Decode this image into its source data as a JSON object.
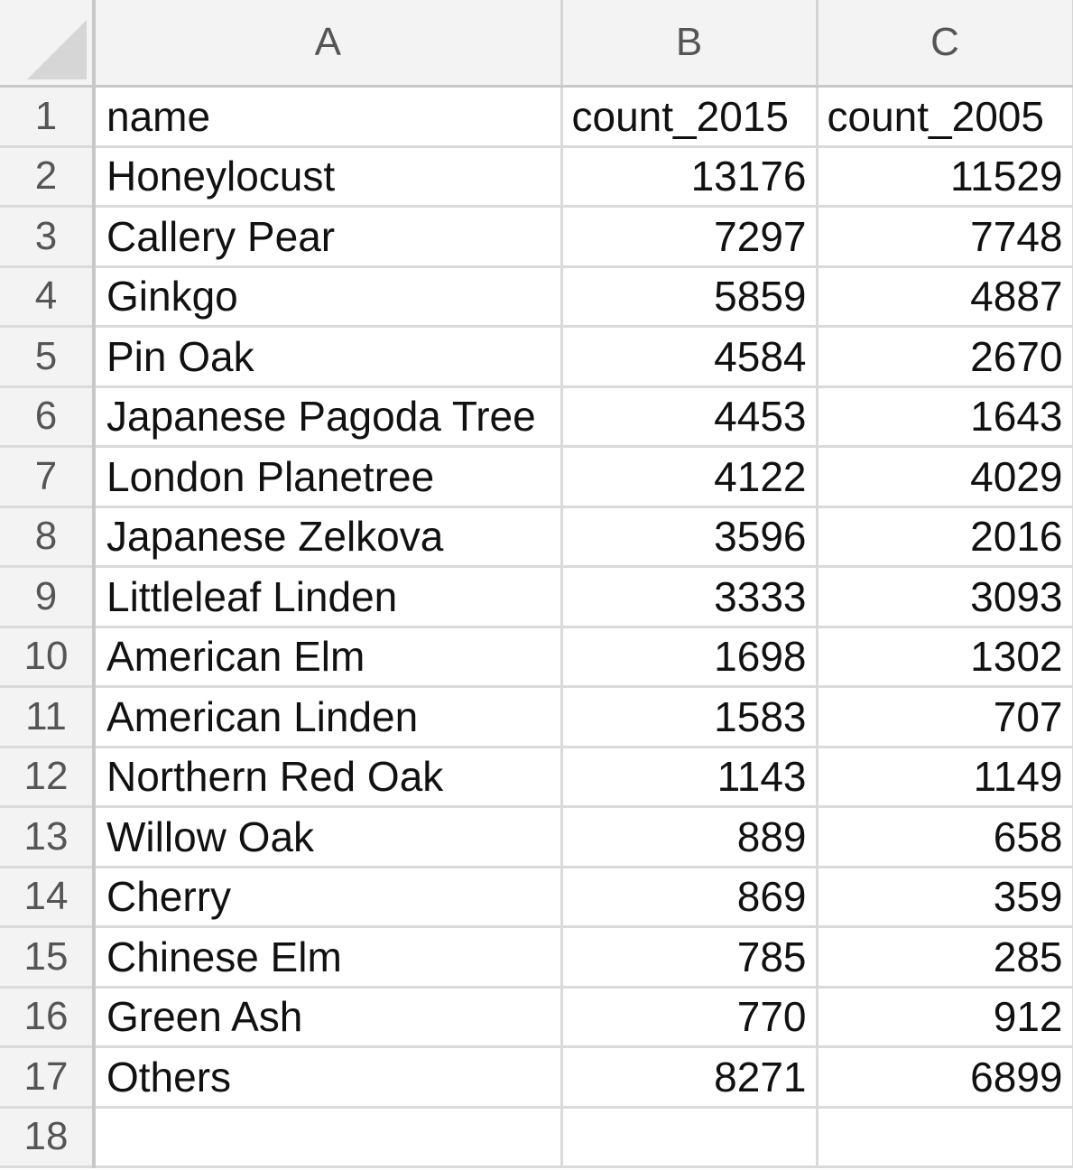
{
  "columns": [
    "A",
    "B",
    "C"
  ],
  "row_numbers": [
    "1",
    "2",
    "3",
    "4",
    "5",
    "6",
    "7",
    "8",
    "9",
    "10",
    "11",
    "12",
    "13",
    "14",
    "15",
    "16",
    "17",
    "18"
  ],
  "header_cells": {
    "a": "name",
    "b": "count_2015",
    "c": "count_2005"
  },
  "rows": [
    {
      "name": "Honeylocust",
      "count_2015": "13176",
      "count_2005": "11529"
    },
    {
      "name": "Callery Pear",
      "count_2015": "7297",
      "count_2005": "7748"
    },
    {
      "name": "Ginkgo",
      "count_2015": "5859",
      "count_2005": "4887"
    },
    {
      "name": "Pin Oak",
      "count_2015": "4584",
      "count_2005": "2670"
    },
    {
      "name": "Japanese Pagoda Tree",
      "count_2015": "4453",
      "count_2005": "1643"
    },
    {
      "name": "London Planetree",
      "count_2015": "4122",
      "count_2005": "4029"
    },
    {
      "name": "Japanese Zelkova",
      "count_2015": "3596",
      "count_2005": "2016"
    },
    {
      "name": "Littleleaf Linden",
      "count_2015": "3333",
      "count_2005": "3093"
    },
    {
      "name": "American Elm",
      "count_2015": "1698",
      "count_2005": "1302"
    },
    {
      "name": "American Linden",
      "count_2015": "1583",
      "count_2005": "707"
    },
    {
      "name": "Northern Red Oak",
      "count_2015": "1143",
      "count_2005": "1149"
    },
    {
      "name": "Willow Oak",
      "count_2015": "889",
      "count_2005": "658"
    },
    {
      "name": "Cherry",
      "count_2015": "869",
      "count_2005": "359"
    },
    {
      "name": "Chinese Elm",
      "count_2015": "785",
      "count_2005": "285"
    },
    {
      "name": "Green Ash",
      "count_2015": "770",
      "count_2005": "912"
    },
    {
      "name": "Others",
      "count_2015": "8271",
      "count_2005": "6899"
    }
  ]
}
